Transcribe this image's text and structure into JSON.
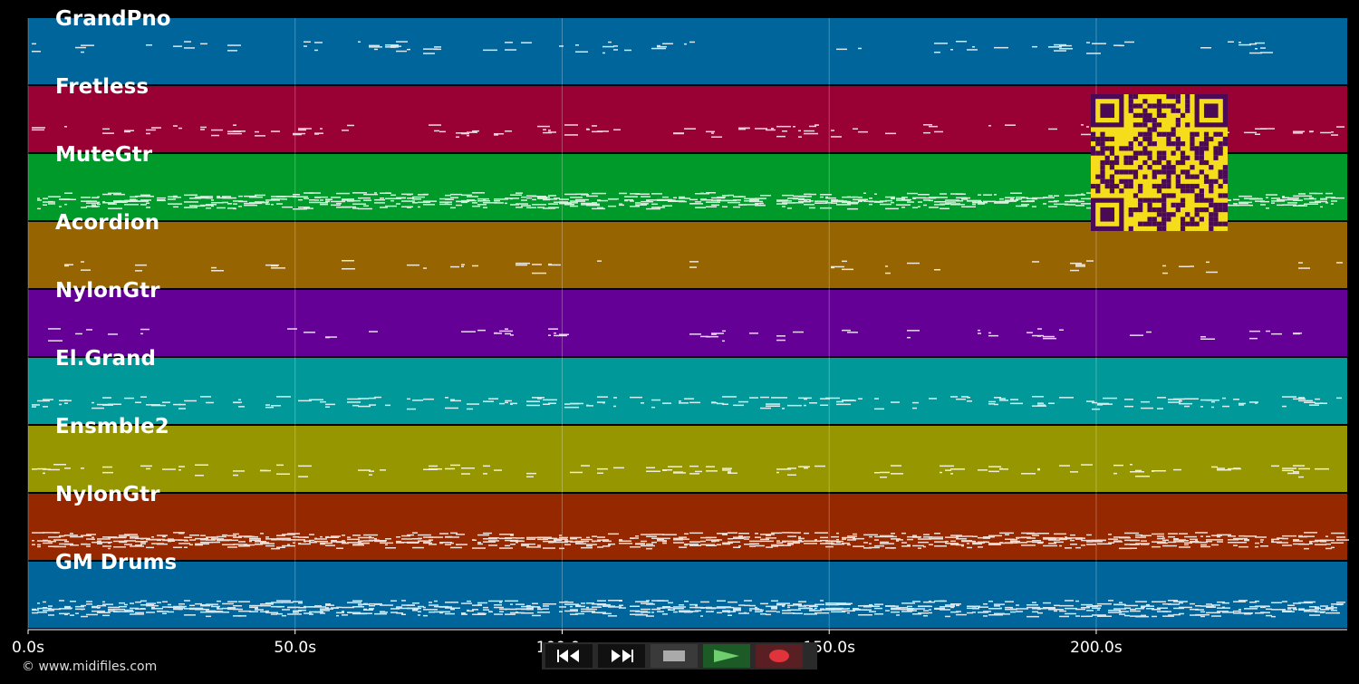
{
  "timeline": {
    "max_seconds": 247,
    "ticks": [
      {
        "value": 0,
        "label": "0.0s"
      },
      {
        "value": 50,
        "label": "50.0s"
      },
      {
        "value": 100,
        "label": "100.0s"
      },
      {
        "value": 150,
        "label": "150.0s"
      },
      {
        "value": 200,
        "label": "200.0s"
      }
    ]
  },
  "tracks": [
    {
      "name": "GrandPno",
      "color": "#00659a"
    },
    {
      "name": "Fretless",
      "color": "#990033"
    },
    {
      "name": "MuteGtr",
      "color": "#009a2a"
    },
    {
      "name": "Acordion",
      "color": "#966400"
    },
    {
      "name": "NylonGtr",
      "color": "#650096"
    },
    {
      "name": "El.Grand",
      "color": "#009898"
    },
    {
      "name": "Ensmble2",
      "color": "#969600"
    },
    {
      "name": "NylonGtr",
      "color": "#962800"
    },
    {
      "name": "GM Drums",
      "color": "#00659a"
    }
  ],
  "footer": {
    "copyright": "© www.midifiles.com"
  },
  "transport": {
    "buttons": [
      {
        "name": "rewind",
        "icon": "rewind-icon"
      },
      {
        "name": "fast-forward",
        "icon": "fast-forward-icon"
      },
      {
        "name": "stop",
        "icon": "stop-icon"
      },
      {
        "name": "play",
        "icon": "play-icon"
      },
      {
        "name": "record",
        "icon": "record-icon"
      }
    ]
  },
  "qr_code": {
    "icon": "qr-code-icon",
    "fg": "#4b0a55",
    "bg": "#f5dd1b"
  }
}
